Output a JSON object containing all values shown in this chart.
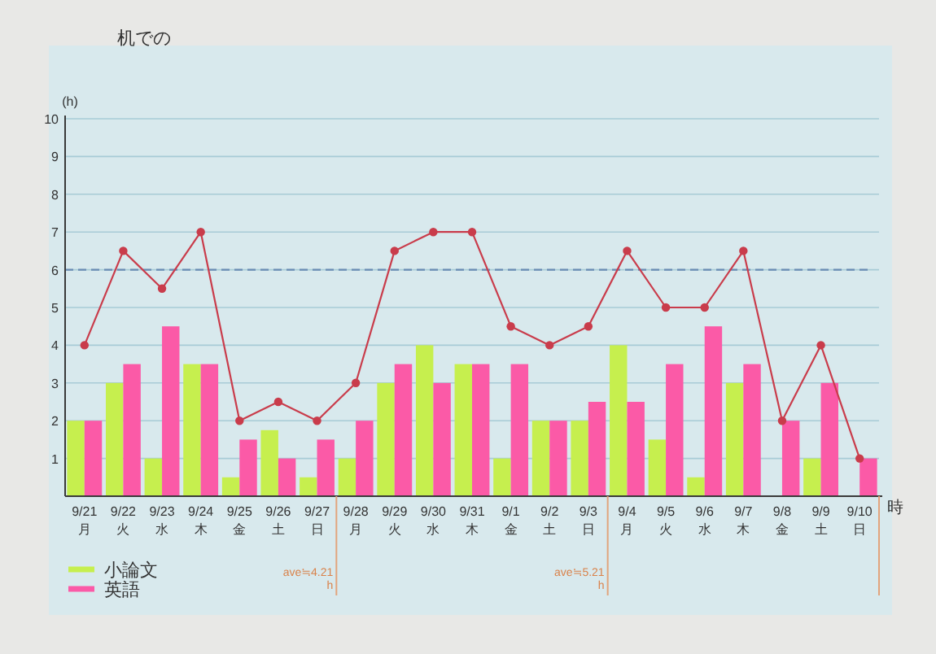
{
  "chart_data": {
    "type": "bar",
    "title": "机での",
    "ylabel": "(h)",
    "xlabel": "時",
    "categories": [
      "9/21\n月",
      "9/22\n火",
      "9/23\n水",
      "9/24\n木",
      "9/25\n金",
      "9/26\n土",
      "9/27\n日",
      "9/28\n月",
      "9/29\n火",
      "9/30\n水",
      "9/31\n木",
      "9/1\n金",
      "9/2\n土",
      "9/3\n日",
      "9/4\n月",
      "9/5\n火",
      "9/6\n水",
      "9/7\n木",
      "9/8\n金",
      "9/9\n土",
      "9/10\n日"
    ],
    "series": [
      {
        "name": "小論文",
        "color": "#c6ef4e",
        "values": [
          2,
          3,
          1,
          3.5,
          0.5,
          1.75,
          0.5,
          1,
          3,
          4,
          3.5,
          1,
          2,
          2,
          4,
          1.5,
          0.5,
          3,
          0,
          1,
          0
        ]
      },
      {
        "name": "英語",
        "color": "#fb5aa7",
        "values": [
          2,
          3.5,
          4.5,
          3.5,
          1.5,
          1,
          1.5,
          2,
          3.5,
          3,
          3.5,
          3.5,
          2,
          2.5,
          2.5,
          3.5,
          4.5,
          3.5,
          2,
          3,
          1
        ]
      },
      {
        "type": "line",
        "color": "#c93c4b",
        "marker": "circle",
        "values": [
          4,
          6.5,
          5.5,
          7,
          2,
          2.5,
          2,
          3,
          6.5,
          7,
          7,
          4.5,
          4,
          4.5,
          6.5,
          5,
          5,
          6.5,
          2,
          4,
          1
        ]
      }
    ],
    "ylim": [
      0,
      10
    ],
    "yticks": [
      1,
      2,
      3,
      4,
      5,
      6,
      7,
      8,
      9,
      10
    ],
    "ref_lines": [
      {
        "axis": "y",
        "value": 6,
        "color": "#6a8cb4",
        "line_style": "dashed"
      }
    ],
    "annotations": [
      "ave≒4.21\nh",
      "ave≒5.21\nh"
    ],
    "legend": "bottom left",
    "grid": "y"
  }
}
